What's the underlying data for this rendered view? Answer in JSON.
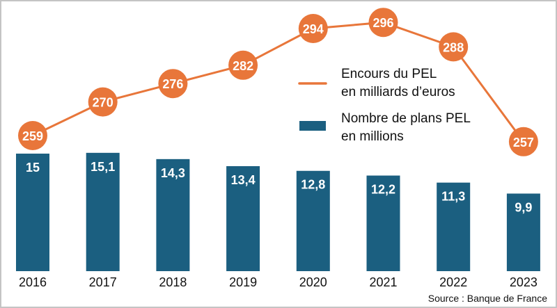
{
  "chart_data": {
    "type": "bar+line",
    "categories": [
      "2016",
      "2017",
      "2018",
      "2019",
      "2020",
      "2021",
      "2022",
      "2023"
    ],
    "series": [
      {
        "name": "Nombre de plans PEL en millions",
        "type": "bar",
        "color": "#1b5f80",
        "values": [
          15,
          15.1,
          14.3,
          13.4,
          12.8,
          12.2,
          11.3,
          9.9
        ],
        "labels": [
          "15",
          "15,1",
          "14,3",
          "13,4",
          "12,8",
          "12,2",
          "11,3",
          "9,9"
        ]
      },
      {
        "name": "Encours du PEL en milliards d’euros",
        "type": "line",
        "color": "#e8763a",
        "values": [
          259,
          270,
          276,
          282,
          294,
          296,
          288,
          257
        ],
        "labels": [
          "259",
          "270",
          "276",
          "282",
          "294",
          "296",
          "288",
          "257"
        ]
      }
    ],
    "legend": {
      "placement": "right-center",
      "line_label": [
        "Encours du PEL",
        "en milliards d’euros"
      ],
      "bar_label": [
        "Nombre de plans PEL",
        "en millions"
      ]
    },
    "grid": false,
    "source": "Source : Banque de France"
  }
}
